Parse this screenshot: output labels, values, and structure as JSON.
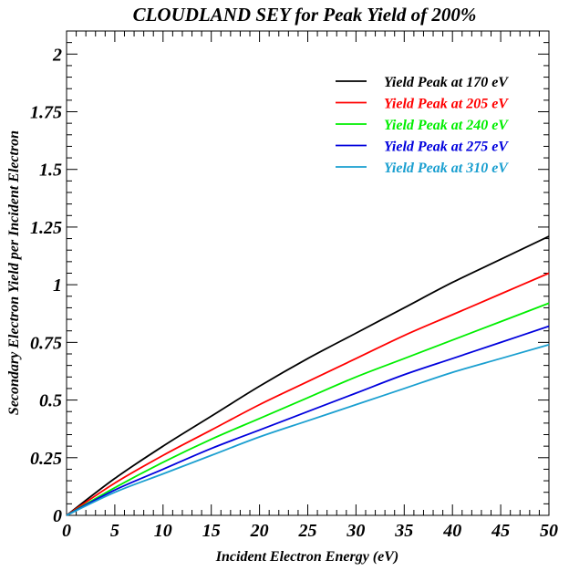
{
  "chart_data": {
    "type": "line",
    "title": "CLOUDLAND SEY for Peak Yield of 200%",
    "xlabel": "Incident Electron Energy (eV)",
    "ylabel": "Secondary Electron Yield per Incident Electron",
    "xlim": [
      0,
      50
    ],
    "ylim": [
      0,
      2.1
    ],
    "x_ticks": [
      "0",
      "5",
      "10",
      "15",
      "20",
      "25",
      "30",
      "35",
      "40",
      "45",
      "50"
    ],
    "y_ticks": [
      "0",
      "0.25",
      "0.5",
      "0.75",
      "1",
      "1.25",
      "1.5",
      "1.75",
      "2"
    ],
    "grid": false,
    "legend_position": "top-right",
    "x": [
      0,
      5,
      10,
      15,
      20,
      25,
      30,
      35,
      40,
      45,
      50
    ],
    "series": [
      {
        "name": "Yield Peak at 170 eV",
        "color": "#000000",
        "values": [
          0,
          0.16,
          0.3,
          0.43,
          0.56,
          0.68,
          0.79,
          0.9,
          1.01,
          1.11,
          1.21
        ]
      },
      {
        "name": "Yield Peak at 205 eV",
        "color": "#ff0000",
        "values": [
          0,
          0.14,
          0.26,
          0.37,
          0.48,
          0.58,
          0.68,
          0.78,
          0.87,
          0.96,
          1.05
        ]
      },
      {
        "name": "Yield Peak at 240 eV",
        "color": "#00ee00",
        "values": [
          0,
          0.12,
          0.23,
          0.33,
          0.42,
          0.51,
          0.6,
          0.68,
          0.76,
          0.84,
          0.92
        ]
      },
      {
        "name": "Yield Peak at 275 eV",
        "color": "#0000dd",
        "values": [
          0,
          0.11,
          0.2,
          0.29,
          0.37,
          0.45,
          0.53,
          0.61,
          0.68,
          0.75,
          0.82
        ]
      },
      {
        "name": "Yield Peak at 310 eV",
        "color": "#1a9fd0",
        "values": [
          0,
          0.1,
          0.18,
          0.26,
          0.34,
          0.41,
          0.48,
          0.55,
          0.62,
          0.68,
          0.74
        ]
      }
    ]
  }
}
